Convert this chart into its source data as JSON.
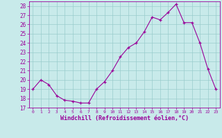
{
  "x": [
    0,
    1,
    2,
    3,
    4,
    5,
    6,
    7,
    8,
    9,
    10,
    11,
    12,
    13,
    14,
    15,
    16,
    17,
    18,
    19,
    20,
    21,
    22,
    23
  ],
  "y": [
    19,
    20,
    19.5,
    18.3,
    17.8,
    17.7,
    17.5,
    17.5,
    19,
    19.8,
    21,
    22.5,
    23.5,
    24,
    25.2,
    26.8,
    26.5,
    27.3,
    28.2,
    26.2,
    26.2,
    24,
    21.2,
    19
  ],
  "line_color": "#990099",
  "marker": "+",
  "bg_color": "#c8eaea",
  "grid_color": "#99cccc",
  "ylabel_ticks": [
    17,
    18,
    19,
    20,
    21,
    22,
    23,
    24,
    25,
    26,
    27,
    28
  ],
  "xlabel_ticks": [
    0,
    1,
    2,
    3,
    4,
    5,
    6,
    7,
    8,
    9,
    10,
    11,
    12,
    13,
    14,
    15,
    16,
    17,
    18,
    19,
    20,
    21,
    22,
    23
  ],
  "xlabel": "Windchill (Refroidissement éolien,°C)",
  "ylim": [
    17,
    28.5
  ],
  "xlim": [
    -0.5,
    23.5
  ],
  "axis_color": "#990099",
  "tick_color": "#990099"
}
